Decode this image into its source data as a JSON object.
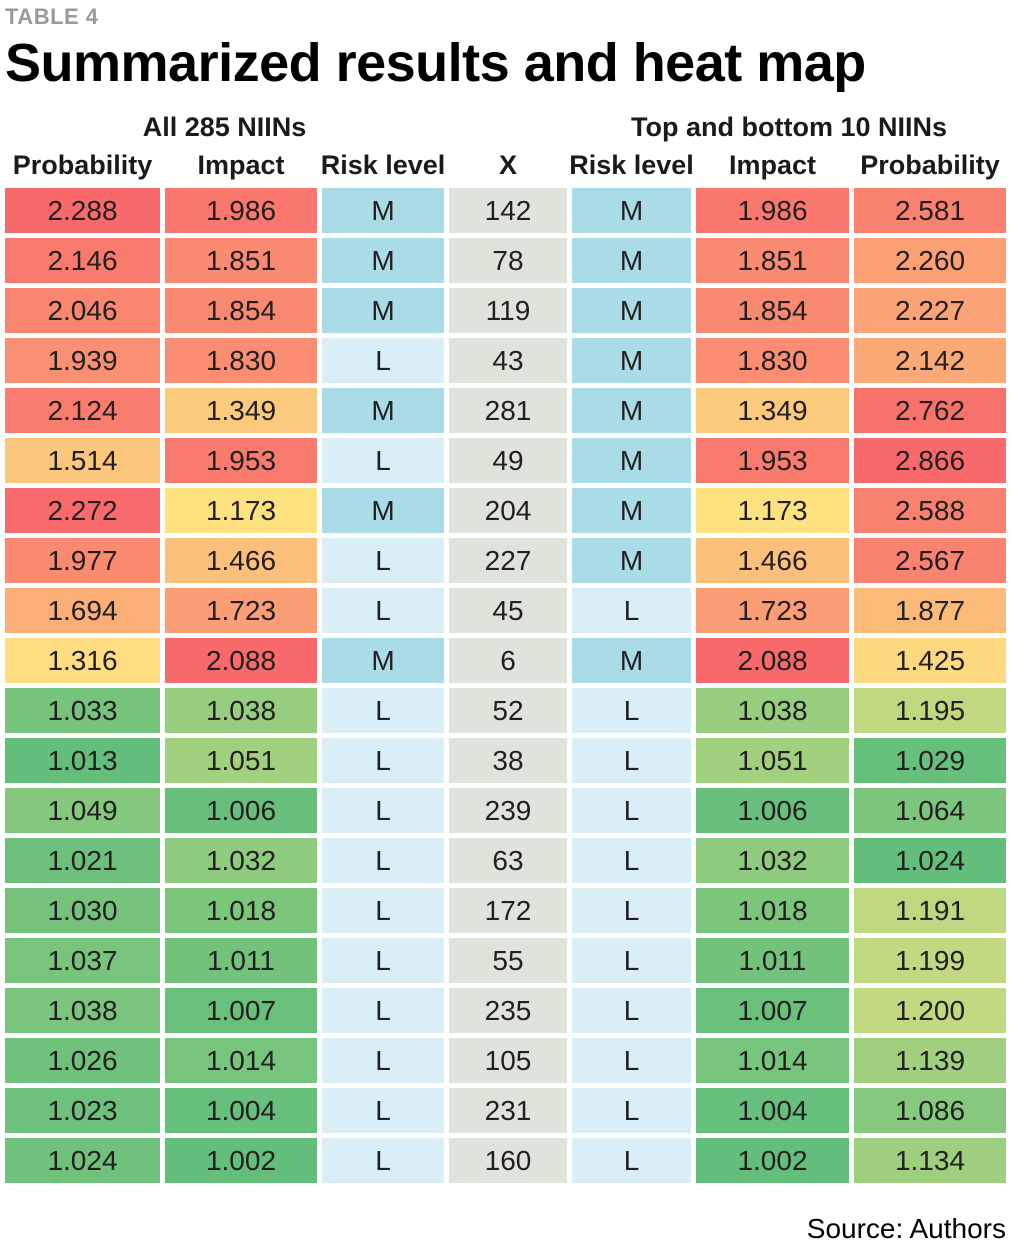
{
  "kicker": "TABLE 4",
  "title": "Summarized results and heat map",
  "source": "Source: Authors",
  "chart_data": {
    "type": "table",
    "subtype": "heatmap",
    "title": "Summarized results and heat map",
    "table_label": "TABLE 4",
    "group_headers": [
      {
        "label": "All 285 NIINs",
        "spans_columns": [
          0,
          1,
          2
        ]
      },
      {
        "label": "Top and bottom 10 NIINs",
        "spans_columns": [
          4,
          5,
          6
        ]
      }
    ],
    "columns": [
      "Probability",
      "Impact",
      "Risk level",
      "X",
      "Risk level",
      "Impact",
      "Probability"
    ],
    "heat_scale": {
      "low_green": "#63be7b",
      "mid_yellow": "#ffeb84",
      "high_red": "#f8696b"
    },
    "category_colors": {
      "risk_M": "#a9dce6",
      "risk_L": "#d9eef7",
      "x_column": "#dfe4da"
    },
    "rows": [
      {
        "cells": [
          {
            "t": "2.288",
            "bg": "#f8696b"
          },
          {
            "t": "1.986",
            "bg": "#f9776d"
          },
          {
            "t": "M",
            "bg": "#a9dce6"
          },
          {
            "t": "142",
            "bg": "#dfe4da"
          },
          {
            "t": "M",
            "bg": "#a9dce6"
          },
          {
            "t": "1.986",
            "bg": "#f9776d"
          },
          {
            "t": "2.581",
            "bg": "#f98170"
          }
        ]
      },
      {
        "cells": [
          {
            "t": "2.146",
            "bg": "#f97b6e"
          },
          {
            "t": "1.851",
            "bg": "#fa8a71"
          },
          {
            "t": "M",
            "bg": "#a9dce6"
          },
          {
            "t": "78",
            "bg": "#dfe4da"
          },
          {
            "t": "M",
            "bg": "#a9dce6"
          },
          {
            "t": "1.851",
            "bg": "#fa8a71"
          },
          {
            "t": "2.260",
            "bg": "#fb9f75"
          }
        ]
      },
      {
        "cells": [
          {
            "t": "2.046",
            "bg": "#fa8670"
          },
          {
            "t": "1.854",
            "bg": "#fa8971"
          },
          {
            "t": "M",
            "bg": "#a9dce6"
          },
          {
            "t": "119",
            "bg": "#dfe4da"
          },
          {
            "t": "M",
            "bg": "#a9dce6"
          },
          {
            "t": "1.854",
            "bg": "#fa8971"
          },
          {
            "t": "2.227",
            "bg": "#fba276"
          }
        ]
      },
      {
        "cells": [
          {
            "t": "1.939",
            "bg": "#fa9073"
          },
          {
            "t": "1.830",
            "bg": "#fa8d72"
          },
          {
            "t": "L",
            "bg": "#d9eef7"
          },
          {
            "t": "43",
            "bg": "#dfe4da"
          },
          {
            "t": "M",
            "bg": "#a9dce6"
          },
          {
            "t": "1.830",
            "bg": "#fa8d72"
          },
          {
            "t": "2.142",
            "bg": "#fbaa77"
          }
        ]
      },
      {
        "cells": [
          {
            "t": "2.124",
            "bg": "#f97d6e"
          },
          {
            "t": "1.349",
            "bg": "#fcca7c"
          },
          {
            "t": "M",
            "bg": "#a9dce6"
          },
          {
            "t": "281",
            "bg": "#dfe4da"
          },
          {
            "t": "M",
            "bg": "#a9dce6"
          },
          {
            "t": "1.349",
            "bg": "#fcca7c"
          },
          {
            "t": "2.762",
            "bg": "#f8726c"
          }
        ]
      },
      {
        "cells": [
          {
            "t": "1.514",
            "bg": "#fcc77c"
          },
          {
            "t": "1.953",
            "bg": "#f97b6e"
          },
          {
            "t": "L",
            "bg": "#d9eef7"
          },
          {
            "t": "49",
            "bg": "#dfe4da"
          },
          {
            "t": "M",
            "bg": "#a9dce6"
          },
          {
            "t": "1.953",
            "bg": "#f97b6e"
          },
          {
            "t": "2.866",
            "bg": "#f8696b"
          }
        ]
      },
      {
        "cells": [
          {
            "t": "2.272",
            "bg": "#f86a6b"
          },
          {
            "t": "1.173",
            "bg": "#fde27f"
          },
          {
            "t": "M",
            "bg": "#a9dce6"
          },
          {
            "t": "204",
            "bg": "#dfe4da"
          },
          {
            "t": "M",
            "bg": "#a9dce6"
          },
          {
            "t": "1.173",
            "bg": "#fde27f"
          },
          {
            "t": "2.588",
            "bg": "#f98170"
          }
        ]
      },
      {
        "cells": [
          {
            "t": "1.977",
            "bg": "#fa8b71"
          },
          {
            "t": "1.466",
            "bg": "#fcc07a"
          },
          {
            "t": "L",
            "bg": "#d9eef7"
          },
          {
            "t": "227",
            "bg": "#dfe4da"
          },
          {
            "t": "M",
            "bg": "#a9dce6"
          },
          {
            "t": "1.466",
            "bg": "#fcc07a"
          },
          {
            "t": "2.567",
            "bg": "#f98270"
          }
        ]
      },
      {
        "cells": [
          {
            "t": "1.694",
            "bg": "#fbaf77"
          },
          {
            "t": "1.723",
            "bg": "#fb9d75"
          },
          {
            "t": "L",
            "bg": "#d9eef7"
          },
          {
            "t": "45",
            "bg": "#dfe4da"
          },
          {
            "t": "L",
            "bg": "#d9eef7"
          },
          {
            "t": "1.723",
            "bg": "#fb9d75"
          },
          {
            "t": "1.877",
            "bg": "#fcba79"
          }
        ]
      },
      {
        "cells": [
          {
            "t": "1.316",
            "bg": "#fede81"
          },
          {
            "t": "2.088",
            "bg": "#f8696b"
          },
          {
            "t": "M",
            "bg": "#a9dce6"
          },
          {
            "t": "6",
            "bg": "#dfe4da"
          },
          {
            "t": "M",
            "bg": "#a9dce6"
          },
          {
            "t": "2.088",
            "bg": "#f8696b"
          },
          {
            "t": "1.425",
            "bg": "#fdd980"
          }
        ]
      },
      {
        "cells": [
          {
            "t": "1.033",
            "bg": "#76c37c"
          },
          {
            "t": "1.038",
            "bg": "#96cd7e"
          },
          {
            "t": "L",
            "bg": "#d9eef7"
          },
          {
            "t": "52",
            "bg": "#dfe4da"
          },
          {
            "t": "L",
            "bg": "#d9eef7"
          },
          {
            "t": "1.038",
            "bg": "#96cd7e"
          },
          {
            "t": "1.195",
            "bg": "#bfd980"
          }
        ]
      },
      {
        "cells": [
          {
            "t": "1.013",
            "bg": "#64be7b"
          },
          {
            "t": "1.051",
            "bg": "#a1d07f"
          },
          {
            "t": "L",
            "bg": "#d9eef7"
          },
          {
            "t": "38",
            "bg": "#dfe4da"
          },
          {
            "t": "L",
            "bg": "#d9eef7"
          },
          {
            "t": "1.051",
            "bg": "#a1d07f"
          },
          {
            "t": "1.029",
            "bg": "#66bf7b"
          }
        ]
      },
      {
        "cells": [
          {
            "t": "1.049",
            "bg": "#84c87d"
          },
          {
            "t": "1.006",
            "bg": "#68bf7b"
          },
          {
            "t": "L",
            "bg": "#d9eef7"
          },
          {
            "t": "239",
            "bg": "#dfe4da"
          },
          {
            "t": "L",
            "bg": "#d9eef7"
          },
          {
            "t": "1.006",
            "bg": "#68bf7b"
          },
          {
            "t": "1.064",
            "bg": "#7bc57c"
          }
        ]
      },
      {
        "cells": [
          {
            "t": "1.021",
            "bg": "#6dc07c"
          },
          {
            "t": "1.032",
            "bg": "#8fcb7e"
          },
          {
            "t": "L",
            "bg": "#d9eef7"
          },
          {
            "t": "63",
            "bg": "#dfe4da"
          },
          {
            "t": "L",
            "bg": "#d9eef7"
          },
          {
            "t": "1.032",
            "bg": "#8fcb7e"
          },
          {
            "t": "1.024",
            "bg": "#63be7b"
          }
        ]
      },
      {
        "cells": [
          {
            "t": "1.030",
            "bg": "#74c27c"
          },
          {
            "t": "1.018",
            "bg": "#7cc67c"
          },
          {
            "t": "L",
            "bg": "#d9eef7"
          },
          {
            "t": "172",
            "bg": "#dfe4da"
          },
          {
            "t": "L",
            "bg": "#d9eef7"
          },
          {
            "t": "1.018",
            "bg": "#7cc67c"
          },
          {
            "t": "1.191",
            "bg": "#bdd880"
          }
        ]
      },
      {
        "cells": [
          {
            "t": "1.037",
            "bg": "#79c47d"
          },
          {
            "t": "1.011",
            "bg": "#73c27c"
          },
          {
            "t": "L",
            "bg": "#d9eef7"
          },
          {
            "t": "55",
            "bg": "#dfe4da"
          },
          {
            "t": "L",
            "bg": "#d9eef7"
          },
          {
            "t": "1.011",
            "bg": "#73c27c"
          },
          {
            "t": "1.199",
            "bg": "#c1da81"
          }
        ]
      },
      {
        "cells": [
          {
            "t": "1.038",
            "bg": "#7ac47d"
          },
          {
            "t": "1.007",
            "bg": "#69c07b"
          },
          {
            "t": "L",
            "bg": "#d9eef7"
          },
          {
            "t": "235",
            "bg": "#dfe4da"
          },
          {
            "t": "L",
            "bg": "#d9eef7"
          },
          {
            "t": "1.007",
            "bg": "#69c07b"
          },
          {
            "t": "1.200",
            "bg": "#c1da81"
          }
        ]
      },
      {
        "cells": [
          {
            "t": "1.026",
            "bg": "#70c17c"
          },
          {
            "t": "1.014",
            "bg": "#77c47d"
          },
          {
            "t": "L",
            "bg": "#d9eef7"
          },
          {
            "t": "105",
            "bg": "#dfe4da"
          },
          {
            "t": "L",
            "bg": "#d9eef7"
          },
          {
            "t": "1.014",
            "bg": "#77c47d"
          },
          {
            "t": "1.139",
            "bg": "#a0d07f"
          }
        ]
      },
      {
        "cells": [
          {
            "t": "1.023",
            "bg": "#6ec17c"
          },
          {
            "t": "1.004",
            "bg": "#66bf7b"
          },
          {
            "t": "L",
            "bg": "#d9eef7"
          },
          {
            "t": "231",
            "bg": "#dfe4da"
          },
          {
            "t": "L",
            "bg": "#d9eef7"
          },
          {
            "t": "1.004",
            "bg": "#66bf7b"
          },
          {
            "t": "1.086",
            "bg": "#86c87d"
          }
        ]
      },
      {
        "cells": [
          {
            "t": "1.024",
            "bg": "#6fc17c"
          },
          {
            "t": "1.002",
            "bg": "#63be7b"
          },
          {
            "t": "L",
            "bg": "#d9eef7"
          },
          {
            "t": "160",
            "bg": "#dfe4da"
          },
          {
            "t": "L",
            "bg": "#d9eef7"
          },
          {
            "t": "1.002",
            "bg": "#63be7b"
          },
          {
            "t": "1.134",
            "bg": "#9dcf7f"
          }
        ]
      }
    ],
    "source": "Source: Authors"
  }
}
